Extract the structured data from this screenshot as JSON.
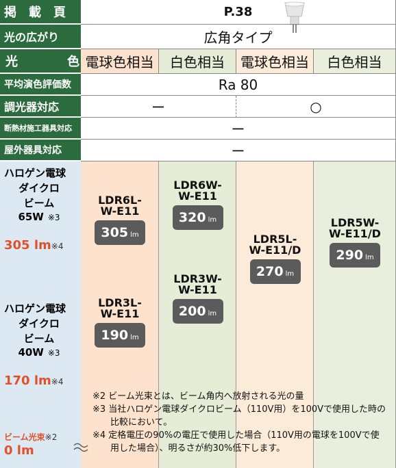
{
  "rows": [
    {
      "label": "掲　載　頁",
      "cells": [
        "P.38"
      ]
    },
    {
      "label": "光の広がり",
      "cells": [
        "広角タイプ"
      ]
    },
    {
      "label": "光　　　　色",
      "cells": [
        "電球色相当",
        "白色相当",
        "電球色相当",
        "白色相当"
      ]
    },
    {
      "label": "平均演色評価数",
      "cells": [
        "Ra 80"
      ]
    },
    {
      "label": "調光器対応",
      "cells": [
        "ー",
        "○"
      ]
    },
    {
      "label": "断熱材施工器具対応",
      "cells": [
        "ー"
      ]
    },
    {
      "label": "屋外器具対応",
      "cells": [
        "ー"
      ]
    }
  ],
  "comparisons": [
    {
      "lamp": [
        "ハロゲン電球",
        "ダイクロ",
        "ビーム",
        "65W"
      ],
      "lamp_note": "※3",
      "lumen": "305 lm",
      "lumen_note": "※4"
    },
    {
      "lamp": [
        "ハロゲン電球",
        "ダイクロ",
        "ビーム",
        "40W"
      ],
      "lamp_note": "※3",
      "lumen": "170 lm",
      "lumen_note": "※4"
    }
  ],
  "beam_label": "ビーム光束",
  "beam_note": "※2",
  "beam_zero": "0 lm",
  "products": [
    {
      "model": [
        "LDR6L-",
        "W-E11"
      ],
      "lumen": 305,
      "unit": "lm"
    },
    {
      "model": [
        "LDR3L-",
        "W-E11"
      ],
      "lumen": 190,
      "unit": "lm"
    },
    {
      "model": [
        "LDR6W-",
        "W-E11"
      ],
      "lumen": 320,
      "unit": "lm"
    },
    {
      "model": [
        "LDR3W-",
        "W-E11"
      ],
      "lumen": 200,
      "unit": "lm"
    },
    {
      "model": [
        "LDR5L-",
        "W-E11/D"
      ],
      "lumen": 270,
      "unit": "lm"
    },
    {
      "model": [
        "LDR5W-",
        "W-E11/D"
      ],
      "lumen": 290,
      "unit": "lm"
    }
  ],
  "notes": [
    "※2 ビーム光束とは、ビーム角内へ放射される光の量",
    "※3 当社ハロゲン電球ダイクロビーム（110V用）を100Vで使用した時の比較において。",
    "※4 定格電圧の90%の電圧で使用した場合（110V用の電球を100Vで使用した場合）、明るさが約30%低下します。"
  ]
}
